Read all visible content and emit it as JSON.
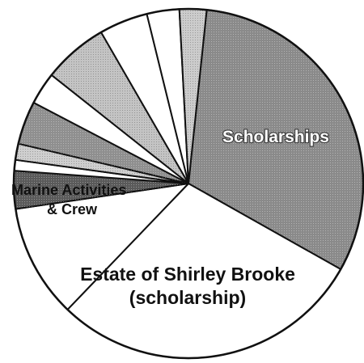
{
  "chart_data": {
    "type": "pie",
    "title": "",
    "start_angle_deg": 6,
    "direction": "clockwise",
    "slices": [
      {
        "label": "Scholarships",
        "value": 31.5,
        "color": "#8a8a8a",
        "pattern": "dense"
      },
      {
        "label": "Estate of Shirley Brooke (scholarship)",
        "value": 29.0,
        "color": "#ffffff",
        "pattern": "none"
      },
      {
        "label": "Marine Activities & Crew",
        "value": 10.5,
        "color": "#ffffff",
        "pattern": "none"
      },
      {
        "label": "",
        "value": 3.5,
        "color": "#5a5a5a",
        "pattern": "dense"
      },
      {
        "label": "",
        "value": 1.0,
        "color": "#ffffff",
        "pattern": "none"
      },
      {
        "label": "",
        "value": 1.5,
        "color": "#cfcfcf",
        "pattern": "light"
      },
      {
        "label": "",
        "value": 4.0,
        "color": "#8f8f8f",
        "pattern": "dense"
      },
      {
        "label": "",
        "value": 3.0,
        "color": "#ffffff",
        "pattern": "none"
      },
      {
        "label": "",
        "value": 6.0,
        "color": "#c4c4c4",
        "pattern": "light"
      },
      {
        "label": "",
        "value": 4.5,
        "color": "#ffffff",
        "pattern": "none"
      },
      {
        "label": "",
        "value": 3.0,
        "color": "#ffffff",
        "pattern": "none"
      },
      {
        "label": "",
        "value": 2.5,
        "color": "#cccccc",
        "pattern": "light"
      }
    ]
  },
  "labels": {
    "scholarships": "Scholarships",
    "brooke_line1": "Estate of Shirley Brooke",
    "brooke_line2": "(scholarship)",
    "marine_line1": "Marine Activities",
    "marine_line2": "& Crew"
  }
}
